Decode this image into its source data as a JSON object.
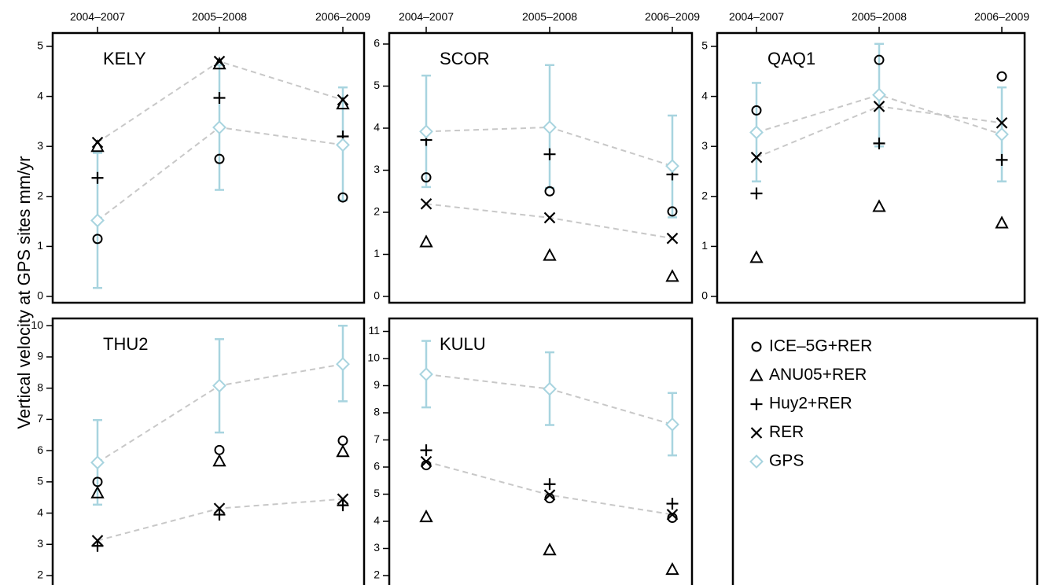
{
  "chart_data": {
    "type": "scatter",
    "ylabel": "Vertical velocity at GPS sites mm/yr",
    "x_categories": [
      "2004–2007",
      "2005–2008",
      "2006–2009"
    ],
    "legend": [
      {
        "name": "ICE–5G+RER",
        "marker": "circle",
        "color": "#000000"
      },
      {
        "name": "ANU05+RER",
        "marker": "triangle",
        "color": "#000000"
      },
      {
        "name": "Huy2+RER",
        "marker": "plus",
        "color": "#000000"
      },
      {
        "name": "RER",
        "marker": "cross",
        "color": "#000000"
      },
      {
        "name": "GPS",
        "marker": "diamond",
        "color": "#a8d4df"
      }
    ],
    "colors": {
      "gps": "#a8d4df",
      "dashed_line": "#c8c8c8",
      "markers": "#000000"
    },
    "panels": [
      {
        "title": "KELY",
        "ylim": [
          0,
          5
        ],
        "yticks": [
          "0",
          "1",
          "2",
          "3",
          "4",
          "5"
        ],
        "ICE-5G+RER": [
          1.15,
          2.75,
          1.98
        ],
        "ANU05+RER": [
          3.0,
          4.65,
          3.85
        ],
        "Huy2+RER": [
          2.37,
          3.97,
          3.2
        ],
        "RER": [
          3.08,
          4.7,
          3.93
        ],
        "GPS": [
          1.52,
          3.38,
          3.03
        ],
        "GPS_err_low": [
          0.17,
          2.13,
          1.92
        ],
        "GPS_err_high": [
          2.87,
          4.63,
          4.18
        ],
        "dashed_series": [
          "RER",
          "GPS"
        ]
      },
      {
        "title": "SCOR",
        "ylim": [
          0,
          6
        ],
        "yticks": [
          "0",
          "1",
          "2",
          "3",
          "4",
          "5",
          "6"
        ],
        "ICE-5G+RER": [
          2.83,
          2.5,
          2.02
        ],
        "ANU05+RER": [
          1.3,
          0.98,
          0.48
        ],
        "Huy2+RER": [
          3.72,
          3.38,
          2.9
        ],
        "RER": [
          2.2,
          1.87,
          1.38
        ],
        "GPS": [
          3.92,
          4.02,
          3.1
        ],
        "GPS_err_low": [
          2.6,
          2.58,
          1.88
        ],
        "GPS_err_high": [
          5.25,
          5.5,
          4.3
        ],
        "dashed_series": [
          "RER",
          "GPS"
        ]
      },
      {
        "title": "QAQ1",
        "ylim": [
          0,
          5
        ],
        "yticks": [
          "0",
          "1",
          "2",
          "3",
          "4",
          "5"
        ],
        "ICE-5G+RER": [
          3.72,
          4.73,
          4.4
        ],
        "ANU05+RER": [
          0.78,
          1.8,
          1.47
        ],
        "Huy2+RER": [
          2.06,
          3.06,
          2.73
        ],
        "RER": [
          2.78,
          3.8,
          3.47
        ],
        "GPS": [
          3.28,
          4.03,
          3.24
        ],
        "GPS_err_low": [
          2.3,
          3.0,
          2.3
        ],
        "GPS_err_high": [
          4.27,
          5.05,
          4.18
        ],
        "dashed_series": [
          "RER",
          "GPS"
        ]
      },
      {
        "title": "THU2",
        "ylim": [
          2,
          10
        ],
        "yticks": [
          "2",
          "3",
          "4",
          "5",
          "6",
          "7",
          "8",
          "9",
          "10"
        ],
        "ICE-5G+RER": [
          5.0,
          6.02,
          6.32
        ],
        "ANU05+RER": [
          4.65,
          5.67,
          5.97
        ],
        "Huy2+RER": [
          2.95,
          3.95,
          4.25
        ],
        "RER": [
          3.12,
          4.15,
          4.45
        ],
        "GPS": [
          5.62,
          8.08,
          8.77
        ],
        "GPS_err_low": [
          4.27,
          6.58,
          7.58
        ],
        "GPS_err_high": [
          6.98,
          9.57,
          10.0
        ],
        "dashed_series": [
          "RER",
          "GPS"
        ]
      },
      {
        "title": "KULU",
        "ylim": [
          2,
          11
        ],
        "yticks": [
          "2",
          "3",
          "4",
          "5",
          "6",
          "7",
          "8",
          "9",
          "10",
          "11"
        ],
        "ICE-5G+RER": [
          6.07,
          4.85,
          4.13
        ],
        "ANU05+RER": [
          4.17,
          2.95,
          2.23
        ],
        "Huy2+RER": [
          6.62,
          5.37,
          4.65
        ],
        "RER": [
          6.2,
          4.97,
          4.25
        ],
        "GPS": [
          9.42,
          8.88,
          7.57
        ],
        "GPS_err_low": [
          8.2,
          7.55,
          6.43
        ],
        "GPS_err_high": [
          10.65,
          10.23,
          8.73
        ],
        "dashed_series": [
          "RER",
          "GPS"
        ]
      }
    ]
  }
}
